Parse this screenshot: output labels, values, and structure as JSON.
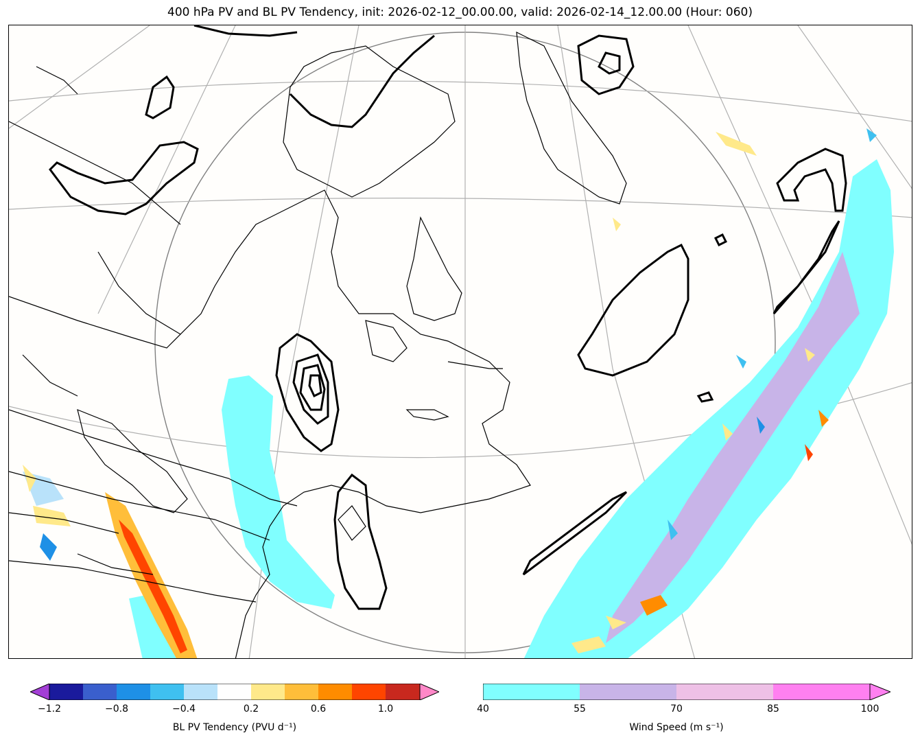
{
  "title": "400 hPa PV and BL PV Tendency, init: 2026-02-12_00.00.00, valid: 2026-02-14_12.00.00 (Hour: 060)",
  "colorbars": {
    "pv_tendency": {
      "label": "BL PV Tendency (PVU d⁻¹)",
      "ticks": [
        "−1.2",
        "−0.8",
        "−0.4",
        "0.2",
        "0.6",
        "1.0"
      ],
      "colors": [
        "#1a1a9c",
        "#3a5fcd",
        "#1e90e6",
        "#3fc0f0",
        "#b9e2fa",
        "#ffffff",
        "#ffe98a",
        "#ffbe3a",
        "#ff8c00",
        "#ff4500",
        "#c8281e"
      ],
      "under_color": "#a33fd6",
      "over_color": "#ff88c8"
    },
    "wind_speed": {
      "label": "Wind Speed (m s⁻¹)",
      "ticks": [
        "40",
        "55",
        "70",
        "85",
        "100"
      ],
      "colors": [
        "#80ffff",
        "#c8b4e8",
        "#eec0e6",
        "#ff80f0"
      ]
    }
  }
}
